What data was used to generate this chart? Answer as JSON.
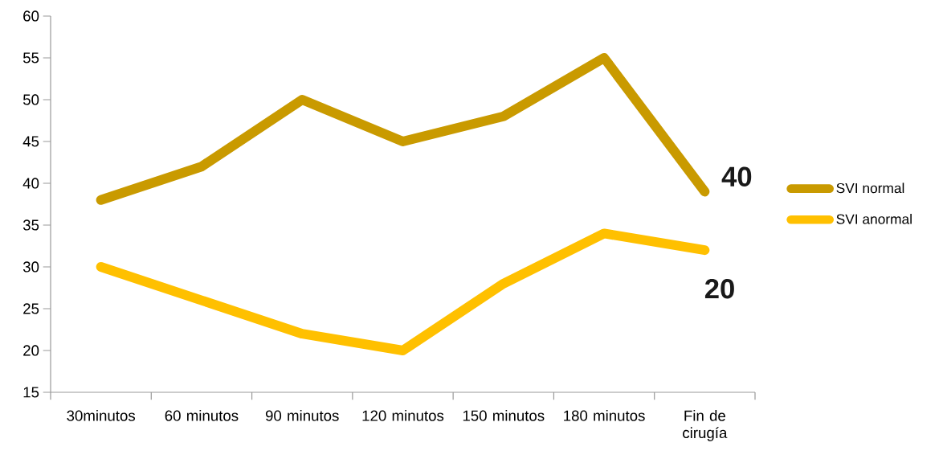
{
  "chart_data": {
    "type": "line",
    "categories": [
      "30minutos",
      "60 minutos",
      "90 minutos",
      "120 minutos",
      "150 minutos",
      "180 minutos",
      "Fin de cirugía"
    ],
    "series": [
      {
        "name": "SVI normal",
        "color": "#c99a00",
        "values": [
          38,
          42,
          50,
          45,
          48,
          55,
          39
        ]
      },
      {
        "name": "SVI anormal",
        "color": "#ffc000",
        "values": [
          30,
          26,
          22,
          20,
          28,
          34,
          32
        ]
      }
    ],
    "ylim": [
      15,
      60
    ],
    "yticks": [
      15,
      20,
      25,
      30,
      35,
      40,
      45,
      50,
      55,
      60
    ],
    "grid": false,
    "legend": "right",
    "marker": "none",
    "line_style": "solid",
    "annotations": [
      "40",
      "20"
    ]
  }
}
